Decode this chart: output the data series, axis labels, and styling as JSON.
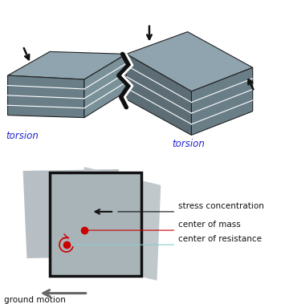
{
  "bg_color": "#ffffff",
  "top_label_left": "torsion",
  "top_label_right": "torsion",
  "label_color": "#2222cc",
  "gray_top": "#909fa8",
  "gray_front": "#6e7e88",
  "gray_side": "#7a8e98",
  "gray_dark_face": "#5a6870",
  "crack_white": "#ffffff",
  "crack_black": "#111111",
  "bottom_gray_fill": "#a8b0b4",
  "bottom_outline": "#111111",
  "bottom_rotated_fill": "#b8c2c8",
  "bottom_bg_fill": "#b0bac0",
  "dot_color": "#cc0000",
  "ann_black": "#111111",
  "ann_red": "#cc0000",
  "ann_cyan": "#88cccc",
  "arrow_gray": "#555555",
  "stress_text": "stress concentration",
  "mass_text": "center of mass",
  "resistance_text": "center of resistance",
  "ground_text": "ground motion",
  "font_annot": 7.5,
  "font_label": 8.5
}
